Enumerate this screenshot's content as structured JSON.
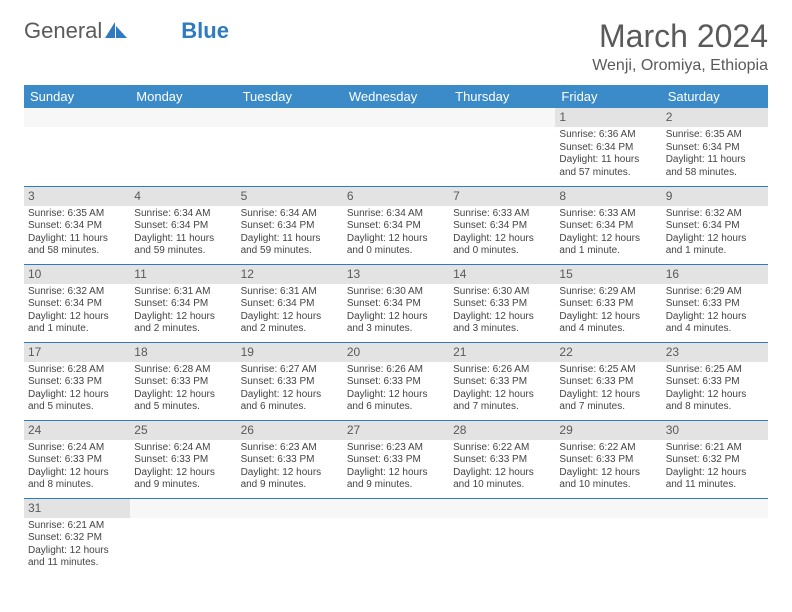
{
  "brand": {
    "part1": "General",
    "part2": "Blue"
  },
  "title": "March 2024",
  "location": "Wenji, Oromiya, Ethiopia",
  "colors": {
    "header_bg": "#3b8bc9",
    "header_text": "#ffffff",
    "daynum_bg": "#e3e3e3",
    "text": "#444444",
    "rule": "#2f7bbf",
    "brand_gray": "#5a5a5a",
    "brand_blue": "#2f7bbf"
  },
  "weekdays": [
    "Sunday",
    "Monday",
    "Tuesday",
    "Wednesday",
    "Thursday",
    "Friday",
    "Saturday"
  ],
  "weeks": [
    [
      {
        "n": "",
        "sr": "",
        "ss": "",
        "dl": ""
      },
      {
        "n": "",
        "sr": "",
        "ss": "",
        "dl": ""
      },
      {
        "n": "",
        "sr": "",
        "ss": "",
        "dl": ""
      },
      {
        "n": "",
        "sr": "",
        "ss": "",
        "dl": ""
      },
      {
        "n": "",
        "sr": "",
        "ss": "",
        "dl": ""
      },
      {
        "n": "1",
        "sr": "Sunrise: 6:36 AM",
        "ss": "Sunset: 6:34 PM",
        "dl": "Daylight: 11 hours and 57 minutes."
      },
      {
        "n": "2",
        "sr": "Sunrise: 6:35 AM",
        "ss": "Sunset: 6:34 PM",
        "dl": "Daylight: 11 hours and 58 minutes."
      }
    ],
    [
      {
        "n": "3",
        "sr": "Sunrise: 6:35 AM",
        "ss": "Sunset: 6:34 PM",
        "dl": "Daylight: 11 hours and 58 minutes."
      },
      {
        "n": "4",
        "sr": "Sunrise: 6:34 AM",
        "ss": "Sunset: 6:34 PM",
        "dl": "Daylight: 11 hours and 59 minutes."
      },
      {
        "n": "5",
        "sr": "Sunrise: 6:34 AM",
        "ss": "Sunset: 6:34 PM",
        "dl": "Daylight: 11 hours and 59 minutes."
      },
      {
        "n": "6",
        "sr": "Sunrise: 6:34 AM",
        "ss": "Sunset: 6:34 PM",
        "dl": "Daylight: 12 hours and 0 minutes."
      },
      {
        "n": "7",
        "sr": "Sunrise: 6:33 AM",
        "ss": "Sunset: 6:34 PM",
        "dl": "Daylight: 12 hours and 0 minutes."
      },
      {
        "n": "8",
        "sr": "Sunrise: 6:33 AM",
        "ss": "Sunset: 6:34 PM",
        "dl": "Daylight: 12 hours and 1 minute."
      },
      {
        "n": "9",
        "sr": "Sunrise: 6:32 AM",
        "ss": "Sunset: 6:34 PM",
        "dl": "Daylight: 12 hours and 1 minute."
      }
    ],
    [
      {
        "n": "10",
        "sr": "Sunrise: 6:32 AM",
        "ss": "Sunset: 6:34 PM",
        "dl": "Daylight: 12 hours and 1 minute."
      },
      {
        "n": "11",
        "sr": "Sunrise: 6:31 AM",
        "ss": "Sunset: 6:34 PM",
        "dl": "Daylight: 12 hours and 2 minutes."
      },
      {
        "n": "12",
        "sr": "Sunrise: 6:31 AM",
        "ss": "Sunset: 6:34 PM",
        "dl": "Daylight: 12 hours and 2 minutes."
      },
      {
        "n": "13",
        "sr": "Sunrise: 6:30 AM",
        "ss": "Sunset: 6:34 PM",
        "dl": "Daylight: 12 hours and 3 minutes."
      },
      {
        "n": "14",
        "sr": "Sunrise: 6:30 AM",
        "ss": "Sunset: 6:33 PM",
        "dl": "Daylight: 12 hours and 3 minutes."
      },
      {
        "n": "15",
        "sr": "Sunrise: 6:29 AM",
        "ss": "Sunset: 6:33 PM",
        "dl": "Daylight: 12 hours and 4 minutes."
      },
      {
        "n": "16",
        "sr": "Sunrise: 6:29 AM",
        "ss": "Sunset: 6:33 PM",
        "dl": "Daylight: 12 hours and 4 minutes."
      }
    ],
    [
      {
        "n": "17",
        "sr": "Sunrise: 6:28 AM",
        "ss": "Sunset: 6:33 PM",
        "dl": "Daylight: 12 hours and 5 minutes."
      },
      {
        "n": "18",
        "sr": "Sunrise: 6:28 AM",
        "ss": "Sunset: 6:33 PM",
        "dl": "Daylight: 12 hours and 5 minutes."
      },
      {
        "n": "19",
        "sr": "Sunrise: 6:27 AM",
        "ss": "Sunset: 6:33 PM",
        "dl": "Daylight: 12 hours and 6 minutes."
      },
      {
        "n": "20",
        "sr": "Sunrise: 6:26 AM",
        "ss": "Sunset: 6:33 PM",
        "dl": "Daylight: 12 hours and 6 minutes."
      },
      {
        "n": "21",
        "sr": "Sunrise: 6:26 AM",
        "ss": "Sunset: 6:33 PM",
        "dl": "Daylight: 12 hours and 7 minutes."
      },
      {
        "n": "22",
        "sr": "Sunrise: 6:25 AM",
        "ss": "Sunset: 6:33 PM",
        "dl": "Daylight: 12 hours and 7 minutes."
      },
      {
        "n": "23",
        "sr": "Sunrise: 6:25 AM",
        "ss": "Sunset: 6:33 PM",
        "dl": "Daylight: 12 hours and 8 minutes."
      }
    ],
    [
      {
        "n": "24",
        "sr": "Sunrise: 6:24 AM",
        "ss": "Sunset: 6:33 PM",
        "dl": "Daylight: 12 hours and 8 minutes."
      },
      {
        "n": "25",
        "sr": "Sunrise: 6:24 AM",
        "ss": "Sunset: 6:33 PM",
        "dl": "Daylight: 12 hours and 9 minutes."
      },
      {
        "n": "26",
        "sr": "Sunrise: 6:23 AM",
        "ss": "Sunset: 6:33 PM",
        "dl": "Daylight: 12 hours and 9 minutes."
      },
      {
        "n": "27",
        "sr": "Sunrise: 6:23 AM",
        "ss": "Sunset: 6:33 PM",
        "dl": "Daylight: 12 hours and 9 minutes."
      },
      {
        "n": "28",
        "sr": "Sunrise: 6:22 AM",
        "ss": "Sunset: 6:33 PM",
        "dl": "Daylight: 12 hours and 10 minutes."
      },
      {
        "n": "29",
        "sr": "Sunrise: 6:22 AM",
        "ss": "Sunset: 6:33 PM",
        "dl": "Daylight: 12 hours and 10 minutes."
      },
      {
        "n": "30",
        "sr": "Sunrise: 6:21 AM",
        "ss": "Sunset: 6:32 PM",
        "dl": "Daylight: 12 hours and 11 minutes."
      }
    ],
    [
      {
        "n": "31",
        "sr": "Sunrise: 6:21 AM",
        "ss": "Sunset: 6:32 PM",
        "dl": "Daylight: 12 hours and 11 minutes."
      },
      {
        "n": "",
        "sr": "",
        "ss": "",
        "dl": ""
      },
      {
        "n": "",
        "sr": "",
        "ss": "",
        "dl": ""
      },
      {
        "n": "",
        "sr": "",
        "ss": "",
        "dl": ""
      },
      {
        "n": "",
        "sr": "",
        "ss": "",
        "dl": ""
      },
      {
        "n": "",
        "sr": "",
        "ss": "",
        "dl": ""
      },
      {
        "n": "",
        "sr": "",
        "ss": "",
        "dl": ""
      }
    ]
  ]
}
